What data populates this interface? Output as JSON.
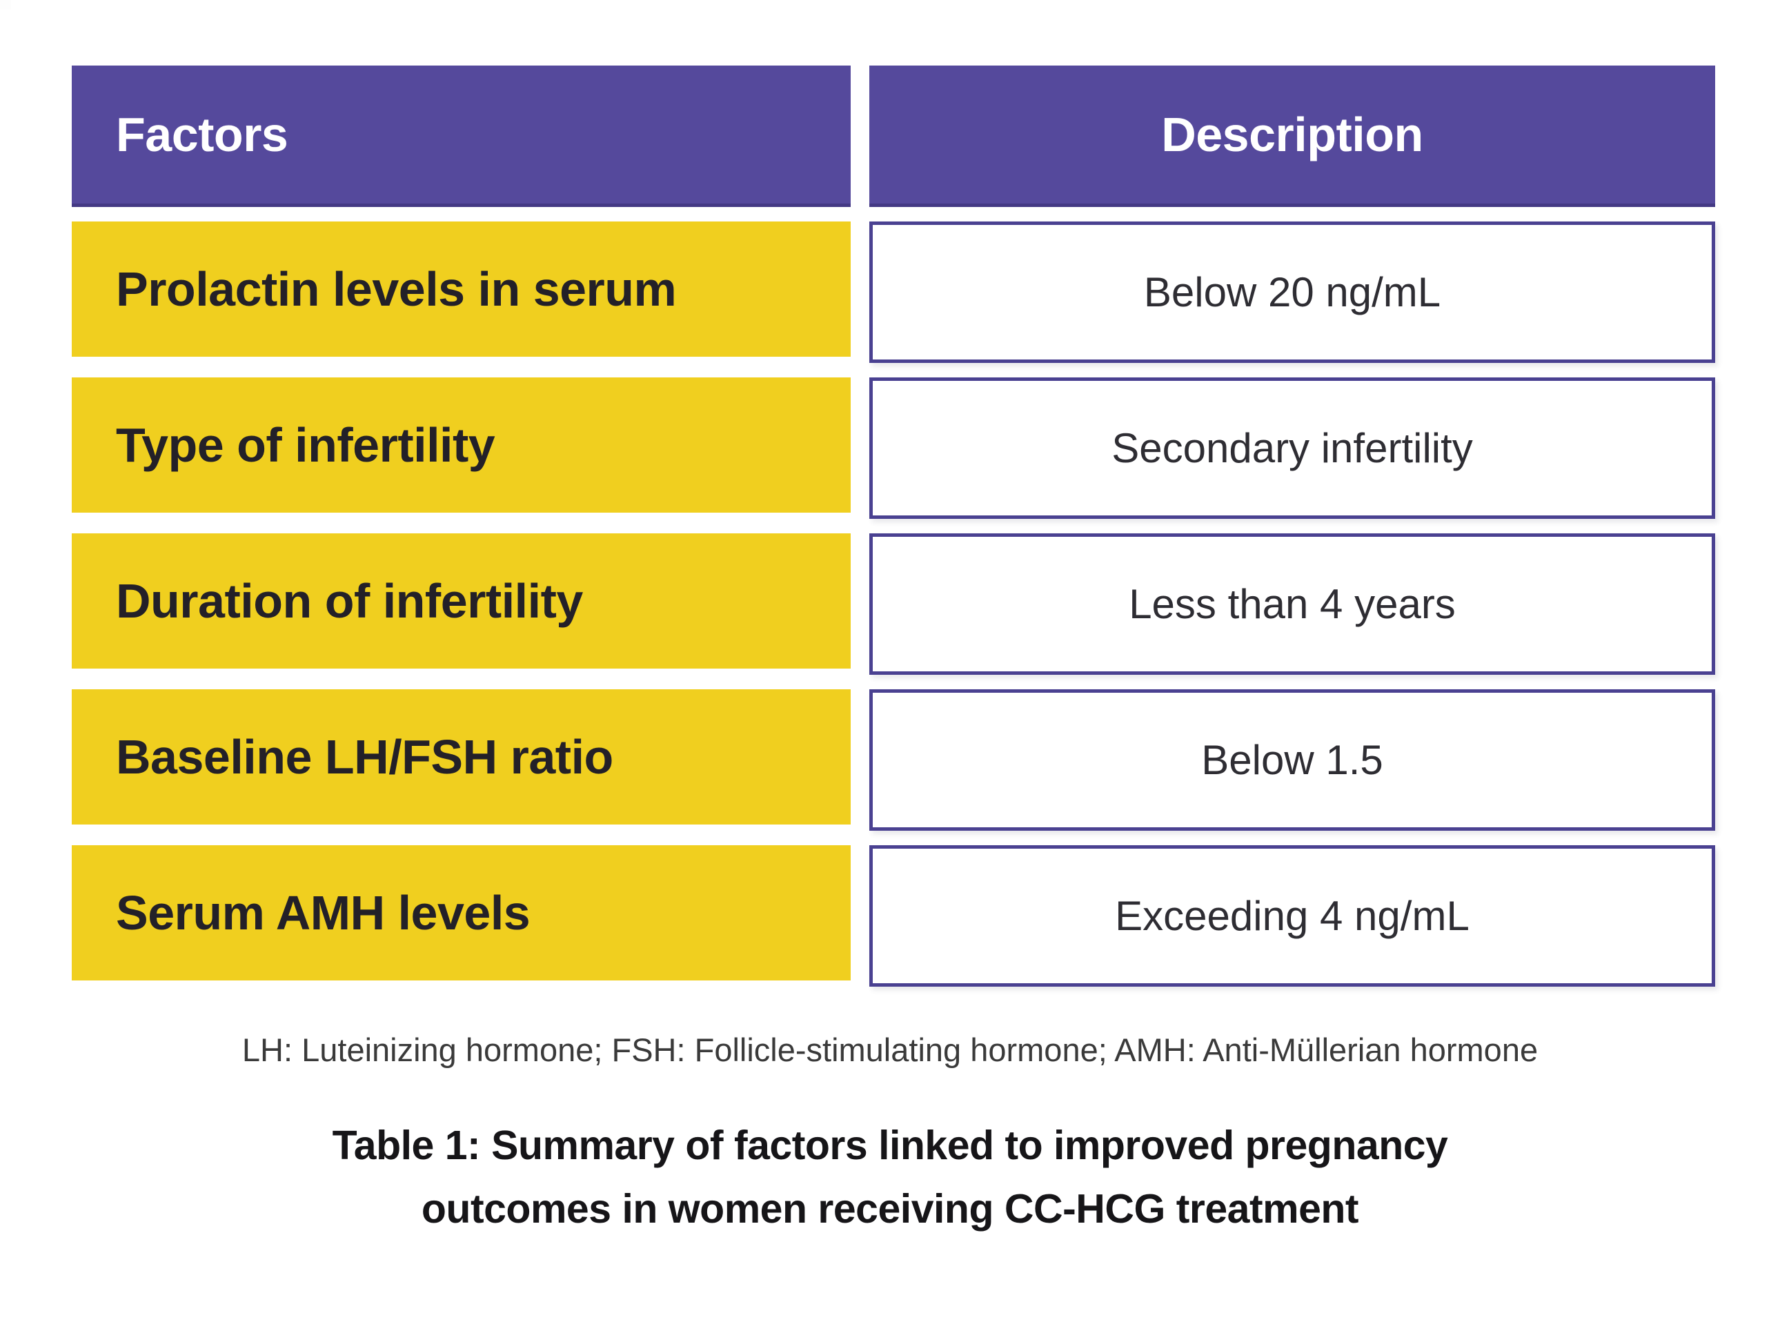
{
  "table": {
    "header": {
      "factors": "Factors",
      "description": "Description"
    },
    "rows": [
      {
        "factor": "Prolactin levels in serum",
        "description": "Below 20 ng/mL"
      },
      {
        "factor": "Type of infertility",
        "description": "Secondary infertility"
      },
      {
        "factor": "Duration of infertility",
        "description": "Less than 4 years"
      },
      {
        "factor": "Baseline LH/FSH ratio",
        "description": "Below 1.5"
      },
      {
        "factor": "Serum AMH levels",
        "description": "Exceeding 4 ng/mL"
      }
    ]
  },
  "footnote": "LH: Luteinizing hormone; FSH: Follicle-stimulating hormone; AMH: Anti-Müllerian hormone",
  "caption": {
    "line1": "Table 1: Summary of factors linked to improved pregnancy",
    "line2": "outcomes in women receiving CC-HCG treatment"
  },
  "colors": {
    "page_bg": "#ffffff",
    "corner_bg": "#fdfdfd",
    "header_bg": "#55499c",
    "header_text": "#ffffff",
    "row_label_bg": "#f0cf1f",
    "row_label_text": "#232028",
    "cell_bg": "#ffffff",
    "cell_border": "#4a4191",
    "cell_text": "#2e2d33",
    "footnote_text": "#3a3a3a",
    "caption_text": "#161518"
  }
}
